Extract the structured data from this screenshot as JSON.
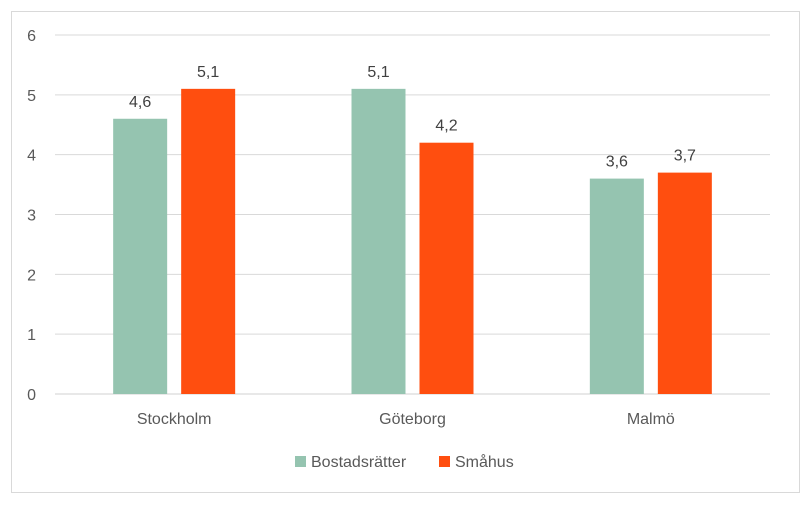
{
  "chart_data": {
    "type": "bar",
    "title": "",
    "xlabel": "",
    "ylabel": "",
    "categories": [
      "Stockholm",
      "Göteborg",
      "Malmö"
    ],
    "series": [
      {
        "name": "Bostadsrätter",
        "values": [
          4.6,
          5.1,
          3.6
        ],
        "labels": [
          "4,6",
          "5,1",
          "3,6"
        ],
        "color": "#95c4b0"
      },
      {
        "name": "Småhus",
        "values": [
          5.1,
          4.2,
          3.7
        ],
        "labels": [
          "5,1",
          "4,2",
          "3,7"
        ],
        "color": "#ff4e0f"
      }
    ],
    "ylim": [
      0,
      6
    ],
    "yticks": [
      "0",
      "1",
      "2",
      "3",
      "4",
      "5",
      "6"
    ],
    "grid": true,
    "legend_position": "bottom"
  }
}
